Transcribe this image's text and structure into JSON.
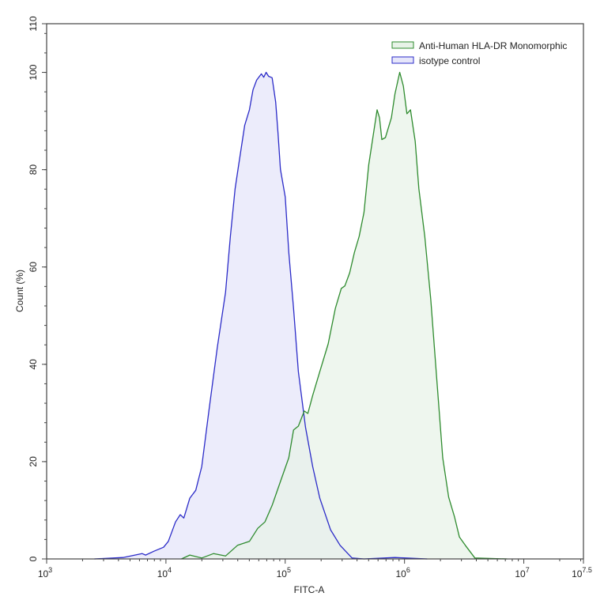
{
  "chart_data": {
    "type": "area",
    "title": "",
    "xlabel": "FITC-A",
    "ylabel": "Count  (%)",
    "xscale": "log10",
    "xlim_log10": [
      3,
      7.5
    ],
    "ylim": [
      0,
      110
    ],
    "grid": false,
    "legend_position": "top-right",
    "x_ticks": [
      {
        "exp": "3",
        "log": 3
      },
      {
        "exp": "4",
        "log": 4
      },
      {
        "exp": "5",
        "log": 5
      },
      {
        "exp": "6",
        "log": 6
      },
      {
        "exp": "7",
        "log": 7
      },
      {
        "exp": "7.5",
        "log": 7.5
      }
    ],
    "x_tick_base": "10",
    "y_ticks": [
      0,
      20,
      40,
      60,
      80,
      100,
      110
    ],
    "y_minor_step": 4,
    "series": [
      {
        "name": "Anti-Human HLA-DR Monomorphic",
        "stroke": "#2e8b2e",
        "fill": "#e8f3e8",
        "points_log10x_y": [
          [
            4.13,
            0
          ],
          [
            4.2,
            0.8
          ],
          [
            4.3,
            0.2
          ],
          [
            4.4,
            1.1
          ],
          [
            4.5,
            0.6
          ],
          [
            4.6,
            2.8
          ],
          [
            4.7,
            3.6
          ],
          [
            4.77,
            6.3
          ],
          [
            4.83,
            7.6
          ],
          [
            4.89,
            11
          ],
          [
            4.96,
            15.9
          ],
          [
            5.03,
            20.8
          ],
          [
            5.07,
            26.5
          ],
          [
            5.11,
            27.3
          ],
          [
            5.16,
            30.4
          ],
          [
            5.19,
            29.9
          ],
          [
            5.23,
            33.6
          ],
          [
            5.29,
            38.5
          ],
          [
            5.36,
            44.2
          ],
          [
            5.42,
            51.5
          ],
          [
            5.47,
            55.6
          ],
          [
            5.5,
            56.1
          ],
          [
            5.54,
            58.8
          ],
          [
            5.58,
            63.0
          ],
          [
            5.62,
            66.3
          ],
          [
            5.66,
            71.2
          ],
          [
            5.7,
            81.0
          ],
          [
            5.73,
            85.8
          ],
          [
            5.77,
            92.3
          ],
          [
            5.79,
            90.7
          ],
          [
            5.81,
            86.2
          ],
          [
            5.84,
            86.6
          ],
          [
            5.89,
            90.7
          ],
          [
            5.92,
            95.6
          ],
          [
            5.96,
            100
          ],
          [
            5.99,
            97.2
          ],
          [
            6.02,
            91.5
          ],
          [
            6.05,
            92.3
          ],
          [
            6.09,
            85.8
          ],
          [
            6.12,
            76.1
          ],
          [
            6.17,
            66.3
          ],
          [
            6.22,
            53.3
          ],
          [
            6.27,
            37.1
          ],
          [
            6.32,
            20.8
          ],
          [
            6.37,
            12.7
          ],
          [
            6.42,
            8.6
          ],
          [
            6.46,
            4.5
          ],
          [
            6.51,
            2.8
          ],
          [
            6.59,
            0.2
          ],
          [
            6.86,
            0
          ]
        ]
      },
      {
        "name": "isotype control",
        "stroke": "#2b2bc8",
        "fill": "#e6e6fa",
        "points_log10x_y": [
          [
            3.4,
            0
          ],
          [
            3.64,
            0.3
          ],
          [
            3.8,
            1.1
          ],
          [
            3.83,
            0.8
          ],
          [
            3.9,
            1.6
          ],
          [
            3.98,
            2.4
          ],
          [
            4.02,
            3.6
          ],
          [
            4.08,
            7.6
          ],
          [
            4.12,
            9.1
          ],
          [
            4.15,
            8.4
          ],
          [
            4.2,
            12.5
          ],
          [
            4.25,
            14.1
          ],
          [
            4.3,
            19.0
          ],
          [
            4.36,
            30.4
          ],
          [
            4.43,
            43.4
          ],
          [
            4.5,
            54.8
          ],
          [
            4.54,
            66.3
          ],
          [
            4.58,
            76.1
          ],
          [
            4.61,
            81.0
          ],
          [
            4.66,
            89.1
          ],
          [
            4.7,
            92.3
          ],
          [
            4.73,
            96.4
          ],
          [
            4.76,
            98.4
          ],
          [
            4.8,
            99.7
          ],
          [
            4.82,
            99.0
          ],
          [
            4.84,
            100
          ],
          [
            4.86,
            99.2
          ],
          [
            4.89,
            98.9
          ],
          [
            4.92,
            93.9
          ],
          [
            4.94,
            87.4
          ],
          [
            4.96,
            80.1
          ],
          [
            5.0,
            74.4
          ],
          [
            5.03,
            63.0
          ],
          [
            5.07,
            51.5
          ],
          [
            5.11,
            38.5
          ],
          [
            5.17,
            27.1
          ],
          [
            5.23,
            19.0
          ],
          [
            5.29,
            12.5
          ],
          [
            5.38,
            6.0
          ],
          [
            5.46,
            2.8
          ],
          [
            5.56,
            0.2
          ],
          [
            5.66,
            0
          ],
          [
            5.92,
            0.3
          ],
          [
            6.19,
            0
          ]
        ]
      }
    ]
  }
}
